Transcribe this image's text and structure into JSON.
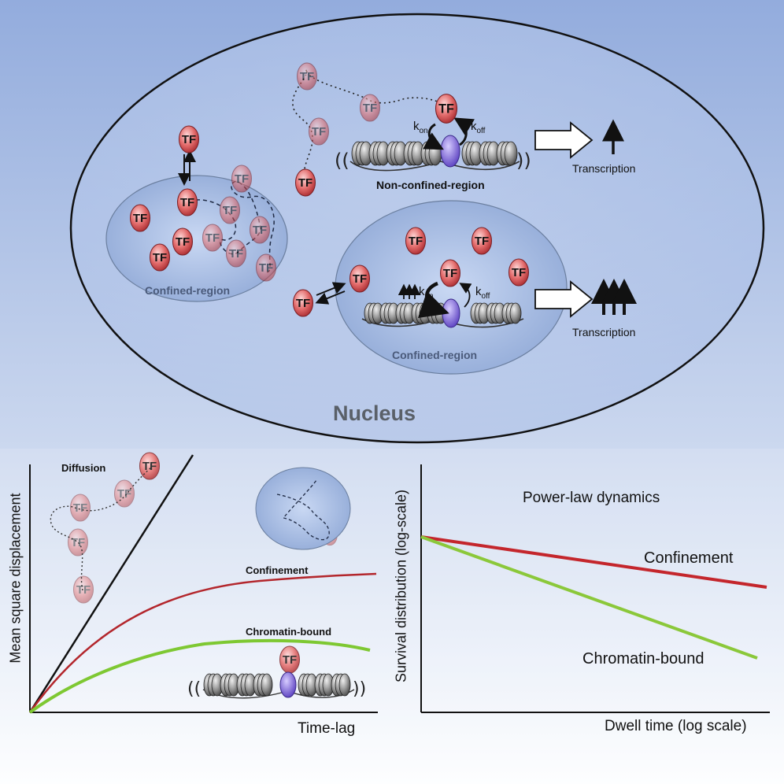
{
  "nucleus": {
    "title": "Nucleus",
    "tf_label": "TF",
    "non_confined_region": {
      "label": "Non-confined-region",
      "kon": "k",
      "kon_sub": "on",
      "koff": "k",
      "koff_sub": "off",
      "transcription": "Transcription"
    },
    "confined_region_left": {
      "label": "Confined-region"
    },
    "confined_region_right": {
      "label": "Confined-region",
      "kon": "k",
      "kon_sub": "on",
      "koff": "k",
      "koff_sub": "off",
      "transcription": "Transcription"
    }
  },
  "msd_panel": {
    "ylabel": "Mean square displacement",
    "xlabel": "Time-lag",
    "curve_labels": {
      "diffusion": "Diffusion",
      "confinement": "Confinement",
      "chromatin_bound": "Chromatin-bound"
    },
    "colors": {
      "diffusion": "#111111",
      "confinement": "#b3262c",
      "chromatin_bound": "#7ec832"
    }
  },
  "survival_panel": {
    "title": "Power-law dynamics",
    "ylabel": "Survival distribution (log-scale)",
    "xlabel": "Dwell time (log scale)",
    "curve_labels": {
      "confinement": "Confinement",
      "chromatin_bound": "Chromatin-bound"
    },
    "colors": {
      "confinement": "#c4262c",
      "chromatin_bound": "#8bc83a"
    }
  }
}
